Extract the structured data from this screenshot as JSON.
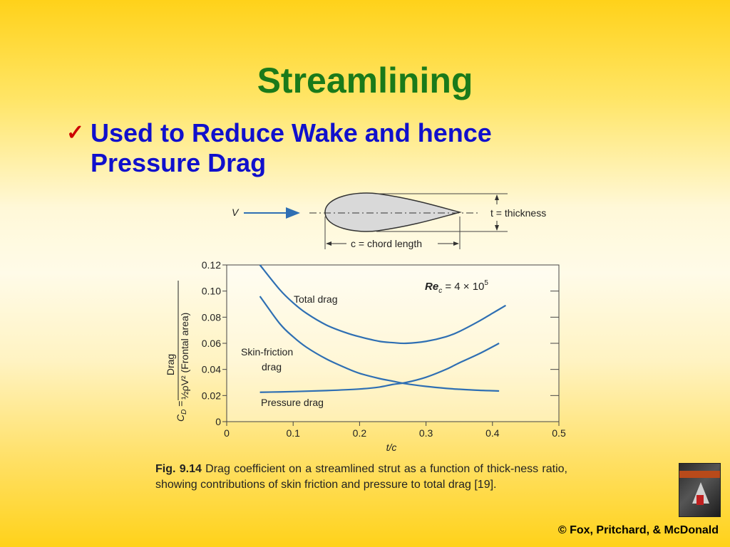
{
  "slide": {
    "title": "Streamlining",
    "bullet_line1": "Used to Reduce Wake and hence",
    "bullet_line2": "Pressure Drag",
    "copyright": "© Fox, Pritchard, & McDonald"
  },
  "strut": {
    "v_label": "V",
    "thickness_label": "t = thickness",
    "chord_label": "c = chord length"
  },
  "caption": {
    "fig": "Fig. 9.14",
    "text": "Drag coefficient on a streamlined strut as a function of thick-ness ratio, showing contributions of skin friction and pressure to total drag [19]."
  },
  "colors": {
    "title": "#1a7a1a",
    "bullet": "#1010cc",
    "check": "#cc0000",
    "curve": "#2f6fb3"
  },
  "chart_data": {
    "type": "line",
    "xlabel": "t/c",
    "ylabel": "C_D = Drag / (½ρV² (Frontal area))",
    "xlim": [
      0,
      0.5
    ],
    "ylim": [
      0,
      0.12
    ],
    "xticks": [
      "0",
      "0.1",
      "0.2",
      "0.3",
      "0.4",
      "0.5"
    ],
    "yticks": [
      "0",
      "0.02",
      "0.04",
      "0.06",
      "0.08",
      "0.10",
      "0.12"
    ],
    "annotation": "Re_c = 4 × 10^5",
    "series": [
      {
        "name": "Total drag",
        "x": [
          0.05,
          0.08,
          0.1,
          0.12,
          0.15,
          0.18,
          0.2,
          0.23,
          0.25,
          0.27,
          0.3,
          0.33,
          0.35,
          0.38,
          0.4,
          0.42
        ],
        "y": [
          0.12,
          0.101,
          0.091,
          0.083,
          0.074,
          0.068,
          0.065,
          0.0615,
          0.0605,
          0.06,
          0.0615,
          0.065,
          0.069,
          0.077,
          0.083,
          0.089
        ]
      },
      {
        "name": "Skin-friction drag",
        "x": [
          0.05,
          0.08,
          0.1,
          0.12,
          0.15,
          0.18,
          0.2,
          0.23,
          0.25,
          0.27,
          0.3,
          0.33,
          0.35,
          0.38,
          0.41
        ],
        "y": [
          0.096,
          0.075,
          0.065,
          0.057,
          0.048,
          0.041,
          0.037,
          0.033,
          0.031,
          0.029,
          0.027,
          0.0255,
          0.0248,
          0.024,
          0.0235
        ]
      },
      {
        "name": "Pressure drag",
        "x": [
          0.05,
          0.1,
          0.15,
          0.2,
          0.23,
          0.25,
          0.27,
          0.3,
          0.33,
          0.35,
          0.38,
          0.41
        ],
        "y": [
          0.0225,
          0.023,
          0.0238,
          0.025,
          0.0265,
          0.0285,
          0.03,
          0.034,
          0.04,
          0.045,
          0.052,
          0.06
        ]
      }
    ]
  }
}
